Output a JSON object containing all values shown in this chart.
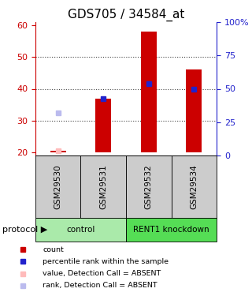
{
  "title": "GDS705 / 34584_at",
  "samples": [
    "GSM29530",
    "GSM29531",
    "GSM29532",
    "GSM29534"
  ],
  "red_bar_values": [
    20.5,
    37.0,
    58.0,
    46.0
  ],
  "red_bar_base": [
    20,
    20,
    20,
    20
  ],
  "blue_square_values": [
    null,
    37.0,
    41.5,
    40.0
  ],
  "absent_value_dots": [
    20.5,
    null,
    null,
    null
  ],
  "absent_rank_dots": [
    32.5,
    null,
    null,
    null
  ],
  "ylim_left": [
    19,
    61
  ],
  "ylim_right": [
    0,
    100
  ],
  "yticks_left": [
    20,
    30,
    40,
    50,
    60
  ],
  "yticks_right": [
    0,
    25,
    50,
    75,
    100
  ],
  "ytick_right_labels": [
    "0",
    "25",
    "50",
    "75",
    "100%"
  ],
  "groups": [
    {
      "label": "control",
      "samples": [
        0,
        1
      ],
      "color": "#aaeaaa"
    },
    {
      "label": "RENT1 knockdown",
      "samples": [
        2,
        3
      ],
      "color": "#55dd55"
    }
  ],
  "bar_color": "#cc0000",
  "blue_color": "#2222cc",
  "absent_value_color": "#ffbbbb",
  "absent_rank_color": "#bbbbee",
  "left_axis_color": "#cc0000",
  "right_axis_color": "#2222cc",
  "dotted_line_color": "#444444",
  "bg_color": "#ffffff",
  "plot_bg": "#ffffff",
  "label_area_color": "#cccccc",
  "bar_width": 0.35,
  "legend_items": [
    {
      "color": "#cc0000",
      "label": "count"
    },
    {
      "color": "#2222cc",
      "label": "percentile rank within the sample"
    },
    {
      "color": "#ffbbbb",
      "label": "value, Detection Call = ABSENT"
    },
    {
      "color": "#bbbbee",
      "label": "rank, Detection Call = ABSENT"
    }
  ]
}
